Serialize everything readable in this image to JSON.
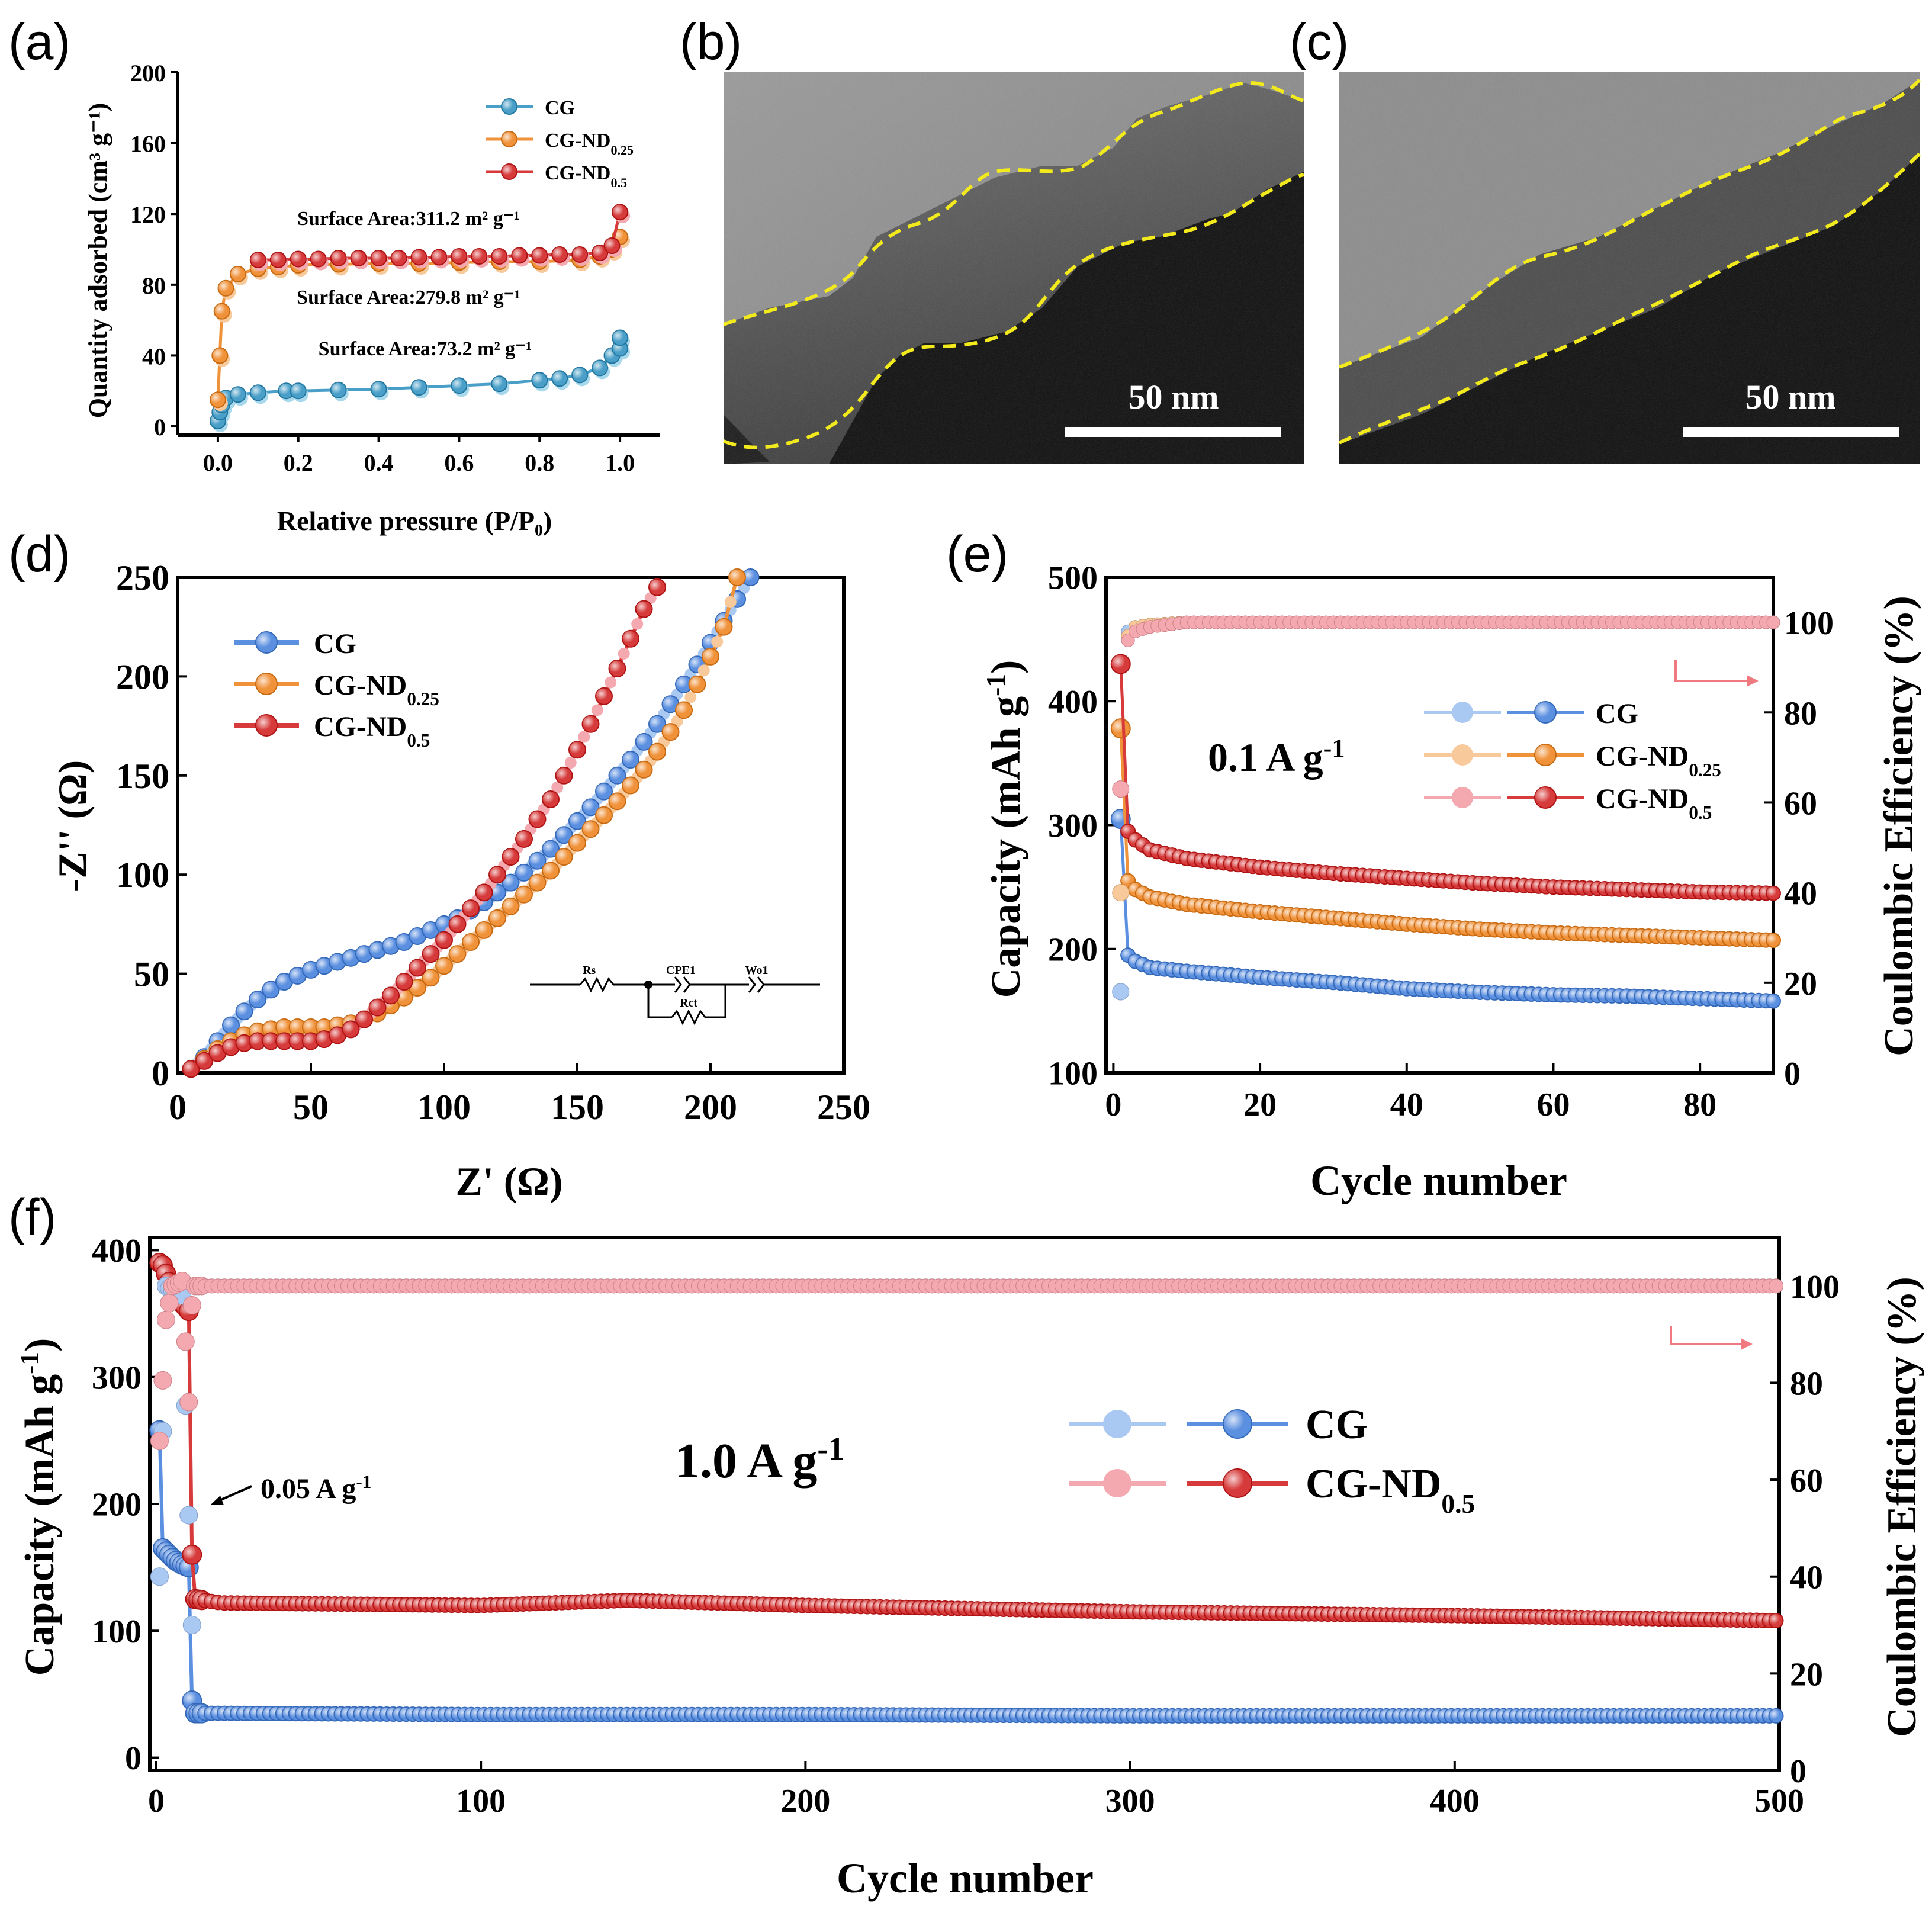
{
  "panels": {
    "a": "(a)",
    "b": "(b)",
    "c": "(c)",
    "d": "(d)",
    "e": "(e)",
    "f": "(f)"
  },
  "colors": {
    "cg": "#4a9fc8",
    "cg_light": "#a8d8ec",
    "nd025": "#f0923a",
    "nd025_light": "#f8c99a",
    "nd05": "#d63a3a",
    "nd05_light": "#f4a9b0",
    "blue2": "#5b8fe0",
    "blue2_light": "#a9c8f2",
    "tem_outline": "#f2ea1c"
  },
  "tem": {
    "b_scale": "50 nm",
    "c_scale": "50 nm"
  },
  "chart_data": [
    {
      "id": "a",
      "type": "line",
      "title": "",
      "xlabel": "Relative pressure (P/P₀)",
      "ylabel": "Quantity adsorbed (cm³ g⁻¹)",
      "xlim": [
        -0.1,
        1.1
      ],
      "ylim": [
        -5,
        200
      ],
      "xticks": [
        0.0,
        0.2,
        0.4,
        0.6,
        0.8,
        1.0
      ],
      "yticks": [
        0,
        40,
        80,
        120,
        160,
        200
      ],
      "legend": [
        "CG",
        "CG-ND0.25",
        "CG-ND0.5"
      ],
      "annotations": {
        "nd05": "Surface Area:311.2 m² g⁻¹",
        "nd025": "Surface Area:279.8 m² g⁻¹",
        "cg": "Surface Area:73.2 m² g⁻¹"
      },
      "series": [
        {
          "name": "CG",
          "x": [
            0.0,
            0.005,
            0.01,
            0.02,
            0.05,
            0.1,
            0.17,
            0.2,
            0.3,
            0.4,
            0.5,
            0.6,
            0.7,
            0.8,
            0.85,
            0.9,
            0.95,
            0.98,
            1.0,
            1.0
          ],
          "y": [
            3,
            8,
            12,
            16,
            18,
            19,
            20,
            20,
            20.5,
            21,
            22,
            23,
            24,
            26,
            27,
            29,
            33,
            40,
            44,
            50
          ]
        },
        {
          "name": "CG-ND0.25",
          "x": [
            0.0,
            0.005,
            0.01,
            0.02,
            0.05,
            0.1,
            0.15,
            0.2,
            0.3,
            0.4,
            0.5,
            0.6,
            0.7,
            0.8,
            0.9,
            0.95,
            0.98,
            1.0
          ],
          "y": [
            15,
            40,
            65,
            78,
            86,
            89,
            90,
            91,
            91.5,
            92,
            92,
            92.5,
            93,
            93,
            94,
            96,
            100,
            107
          ]
        },
        {
          "name": "CG-ND0.5",
          "x": [
            0.1,
            0.15,
            0.2,
            0.25,
            0.3,
            0.35,
            0.4,
            0.45,
            0.5,
            0.55,
            0.6,
            0.65,
            0.7,
            0.75,
            0.8,
            0.85,
            0.9,
            0.95,
            0.98,
            1.0
          ],
          "y": [
            94,
            94,
            94.5,
            94.5,
            95,
            95,
            95,
            95,
            95.5,
            95.5,
            96,
            96,
            96,
            96.5,
            96.5,
            97,
            97,
            98,
            102,
            121
          ]
        }
      ]
    },
    {
      "id": "d",
      "type": "line",
      "title": "",
      "xlabel": "Z' (Ω)",
      "ylabel": "-Z'' (Ω)",
      "xlim": [
        0,
        250
      ],
      "ylim": [
        0,
        250
      ],
      "xticks": [
        0,
        50,
        100,
        150,
        200,
        250
      ],
      "yticks": [
        0,
        50,
        100,
        150,
        200,
        250
      ],
      "legend": [
        "CG",
        "CG-ND0.25",
        "CG-ND0.5"
      ],
      "inset": {
        "labels": [
          "Rs",
          "CPE1",
          "Wo1",
          "Rct"
        ]
      },
      "series": [
        {
          "name": "CG",
          "x": [
            5,
            10,
            15,
            20,
            25,
            30,
            35,
            40,
            45,
            50,
            55,
            60,
            65,
            70,
            75,
            80,
            85,
            90,
            95,
            100,
            105,
            110,
            115,
            120,
            125,
            130,
            135,
            140,
            145,
            150,
            155,
            160,
            165,
            170,
            175,
            180,
            185,
            190,
            195,
            200,
            205,
            210,
            215
          ],
          "y": [
            2,
            8,
            16,
            24,
            31,
            37,
            42,
            46,
            49,
            52,
            54,
            56,
            58,
            60,
            62,
            64,
            66,
            69,
            72,
            75,
            78,
            82,
            86,
            91,
            96,
            101,
            107,
            113,
            120,
            127,
            134,
            142,
            150,
            158,
            167,
            176,
            186,
            196,
            206,
            217,
            228,
            239,
            250
          ]
        },
        {
          "name": "CG-ND0.25",
          "x": [
            5,
            10,
            15,
            20,
            25,
            30,
            35,
            40,
            45,
            50,
            55,
            60,
            65,
            70,
            75,
            80,
            85,
            90,
            95,
            100,
            105,
            110,
            115,
            120,
            125,
            130,
            135,
            140,
            145,
            150,
            155,
            160,
            165,
            170,
            175,
            180,
            185,
            190,
            195,
            200,
            205,
            210
          ],
          "y": [
            2,
            7,
            12,
            16,
            19,
            21,
            22,
            23,
            23,
            23,
            23,
            24,
            25,
            27,
            30,
            34,
            38,
            43,
            48,
            54,
            60,
            66,
            72,
            78,
            84,
            90,
            96,
            102,
            109,
            116,
            123,
            130,
            137,
            145,
            153,
            162,
            172,
            183,
            196,
            210,
            225,
            250
          ]
        },
        {
          "name": "CG-ND0.5",
          "x": [
            5,
            10,
            15,
            20,
            25,
            30,
            35,
            40,
            45,
            50,
            55,
            60,
            65,
            70,
            75,
            80,
            85,
            90,
            95,
            100,
            105,
            110,
            115,
            120,
            125,
            130,
            135,
            140,
            145,
            150,
            155,
            160,
            165,
            170,
            175,
            180
          ],
          "y": [
            2,
            6,
            10,
            13,
            15,
            16,
            16,
            16,
            16,
            16,
            17,
            19,
            22,
            27,
            33,
            39,
            46,
            53,
            60,
            67,
            75,
            83,
            91,
            100,
            109,
            118,
            128,
            138,
            150,
            163,
            176,
            190,
            204,
            219,
            234,
            245
          ]
        }
      ]
    },
    {
      "id": "e",
      "type": "line",
      "title": "",
      "annotation": "0.1 A g⁻¹",
      "xlabel": "Cycle number",
      "ylabel": "Capacity (mAh g⁻¹)",
      "y2label": "Coulombic Efficiency (%)",
      "xlim": [
        -1,
        90
      ],
      "ylim": [
        100,
        500
      ],
      "y2lim": [
        0,
        110
      ],
      "xticks": [
        0,
        20,
        40,
        60,
        80
      ],
      "yticks": [
        100,
        200,
        300,
        400,
        500
      ],
      "y2ticks": [
        0,
        20,
        40,
        60,
        80,
        100
      ],
      "legend": [
        "CG",
        "CG-ND0.25",
        "CG-ND0.5"
      ],
      "series": [
        {
          "name": "CG capacity",
          "x": [
            1,
            2,
            3,
            5,
            10,
            20,
            30,
            40,
            50,
            60,
            70,
            80,
            90
          ],
          "y": [
            305,
            195,
            190,
            185,
            182,
            177,
            173,
            168,
            165,
            163,
            162,
            160,
            158
          ]
        },
        {
          "name": "CG-ND0.25 capacity",
          "x": [
            1,
            2,
            3,
            5,
            10,
            20,
            30,
            40,
            50,
            60,
            70,
            80,
            90
          ],
          "y": [
            378,
            255,
            248,
            242,
            236,
            230,
            225,
            220,
            216,
            213,
            211,
            209,
            207
          ]
        },
        {
          "name": "CG-ND0.5 capacity",
          "x": [
            1,
            2,
            3,
            5,
            10,
            20,
            30,
            40,
            50,
            60,
            70,
            80,
            90
          ],
          "y": [
            430,
            295,
            288,
            280,
            273,
            266,
            261,
            257,
            253,
            250,
            248,
            246,
            245
          ]
        },
        {
          "name": "CG CE",
          "x": [
            1,
            2,
            3,
            5,
            10,
            20,
            40,
            60,
            80,
            90
          ],
          "y": [
            18,
            98,
            99,
            99.5,
            100,
            100,
            100,
            100,
            100,
            100
          ]
        },
        {
          "name": "CG-ND0.25 CE",
          "x": [
            1,
            2,
            3,
            5,
            10,
            20,
            40,
            60,
            80,
            90
          ],
          "y": [
            40,
            97,
            99,
            99.5,
            100,
            100,
            100,
            100,
            100,
            100
          ]
        },
        {
          "name": "CG-ND0.5 CE",
          "x": [
            1,
            2,
            3,
            5,
            10,
            20,
            40,
            60,
            80,
            90
          ],
          "y": [
            63,
            96,
            98,
            99,
            100,
            100,
            100,
            100,
            100,
            100
          ]
        }
      ]
    },
    {
      "id": "f",
      "type": "line",
      "title": "",
      "annotation": "1.0 A g⁻¹",
      "annotation2": "0.05 A g⁻¹",
      "xlabel": "Cycle number",
      "ylabel": "Capacity (mAh g⁻¹)",
      "y2label": "Coulombic Efficiency (%)",
      "xlim": [
        -2,
        500
      ],
      "ylim": [
        -10,
        410
      ],
      "y2lim": [
        0,
        110
      ],
      "xticks": [
        0,
        100,
        200,
        300,
        400,
        500
      ],
      "yticks": [
        0,
        100,
        200,
        300,
        400
      ],
      "y2ticks": [
        0,
        20,
        40,
        60,
        80,
        100
      ],
      "legend": [
        "CG",
        "CG-ND0.5"
      ],
      "series": [
        {
          "name": "CG capacity",
          "x": [
            1,
            2,
            4,
            6,
            8,
            10,
            11,
            12,
            20,
            100,
            200,
            300,
            400,
            500
          ],
          "y": [
            258,
            165,
            160,
            155,
            152,
            150,
            45,
            35,
            35,
            34,
            34,
            33,
            33,
            33
          ]
        },
        {
          "name": "CG-ND0.5 capacity",
          "x": [
            1,
            2,
            4,
            6,
            8,
            10,
            11,
            12,
            20,
            100,
            145,
            200,
            300,
            400,
            500
          ],
          "y": [
            390,
            388,
            375,
            365,
            358,
            352,
            160,
            125,
            122,
            120,
            124,
            120,
            115,
            112,
            108
          ]
        },
        {
          "name": "CG CE",
          "x": [
            1,
            3,
            5,
            8,
            11,
            12,
            20,
            100,
            200,
            300,
            400,
            500
          ],
          "y": [
            40,
            100,
            99,
            98,
            30,
            100,
            100,
            100,
            100,
            100,
            100,
            100
          ]
        },
        {
          "name": "CG-ND0.5 CE",
          "x": [
            1,
            3,
            5,
            8,
            10,
            11,
            12,
            20,
            100,
            200,
            300,
            400,
            500
          ],
          "y": [
            68,
            93,
            100,
            101,
            76,
            96,
            100,
            100,
            100,
            100,
            100,
            100,
            100
          ]
        }
      ]
    }
  ]
}
